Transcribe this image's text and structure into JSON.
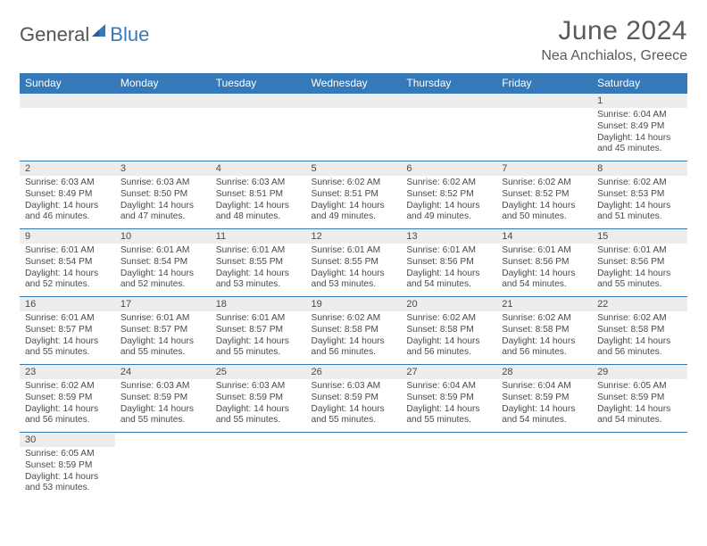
{
  "logo": {
    "text1": "General",
    "text2": "Blue",
    "sail_color": "#3579b8"
  },
  "header": {
    "title": "June 2024",
    "subtitle": "Nea Anchialos, Greece"
  },
  "colors": {
    "header_bg": "#3579b8",
    "header_fg": "#ffffff",
    "daynum_bg": "#ededed",
    "text": "#4a4a4a",
    "rule": "#3579b8"
  },
  "weekdays": [
    "Sunday",
    "Monday",
    "Tuesday",
    "Wednesday",
    "Thursday",
    "Friday",
    "Saturday"
  ],
  "weeks": [
    [
      null,
      null,
      null,
      null,
      null,
      null,
      {
        "n": "1",
        "sunrise": "Sunrise: 6:04 AM",
        "sunset": "Sunset: 8:49 PM",
        "day1": "Daylight: 14 hours",
        "day2": "and 45 minutes."
      }
    ],
    [
      {
        "n": "2",
        "sunrise": "Sunrise: 6:03 AM",
        "sunset": "Sunset: 8:49 PM",
        "day1": "Daylight: 14 hours",
        "day2": "and 46 minutes."
      },
      {
        "n": "3",
        "sunrise": "Sunrise: 6:03 AM",
        "sunset": "Sunset: 8:50 PM",
        "day1": "Daylight: 14 hours",
        "day2": "and 47 minutes."
      },
      {
        "n": "4",
        "sunrise": "Sunrise: 6:03 AM",
        "sunset": "Sunset: 8:51 PM",
        "day1": "Daylight: 14 hours",
        "day2": "and 48 minutes."
      },
      {
        "n": "5",
        "sunrise": "Sunrise: 6:02 AM",
        "sunset": "Sunset: 8:51 PM",
        "day1": "Daylight: 14 hours",
        "day2": "and 49 minutes."
      },
      {
        "n": "6",
        "sunrise": "Sunrise: 6:02 AM",
        "sunset": "Sunset: 8:52 PM",
        "day1": "Daylight: 14 hours",
        "day2": "and 49 minutes."
      },
      {
        "n": "7",
        "sunrise": "Sunrise: 6:02 AM",
        "sunset": "Sunset: 8:52 PM",
        "day1": "Daylight: 14 hours",
        "day2": "and 50 minutes."
      },
      {
        "n": "8",
        "sunrise": "Sunrise: 6:02 AM",
        "sunset": "Sunset: 8:53 PM",
        "day1": "Daylight: 14 hours",
        "day2": "and 51 minutes."
      }
    ],
    [
      {
        "n": "9",
        "sunrise": "Sunrise: 6:01 AM",
        "sunset": "Sunset: 8:54 PM",
        "day1": "Daylight: 14 hours",
        "day2": "and 52 minutes."
      },
      {
        "n": "10",
        "sunrise": "Sunrise: 6:01 AM",
        "sunset": "Sunset: 8:54 PM",
        "day1": "Daylight: 14 hours",
        "day2": "and 52 minutes."
      },
      {
        "n": "11",
        "sunrise": "Sunrise: 6:01 AM",
        "sunset": "Sunset: 8:55 PM",
        "day1": "Daylight: 14 hours",
        "day2": "and 53 minutes."
      },
      {
        "n": "12",
        "sunrise": "Sunrise: 6:01 AM",
        "sunset": "Sunset: 8:55 PM",
        "day1": "Daylight: 14 hours",
        "day2": "and 53 minutes."
      },
      {
        "n": "13",
        "sunrise": "Sunrise: 6:01 AM",
        "sunset": "Sunset: 8:56 PM",
        "day1": "Daylight: 14 hours",
        "day2": "and 54 minutes."
      },
      {
        "n": "14",
        "sunrise": "Sunrise: 6:01 AM",
        "sunset": "Sunset: 8:56 PM",
        "day1": "Daylight: 14 hours",
        "day2": "and 54 minutes."
      },
      {
        "n": "15",
        "sunrise": "Sunrise: 6:01 AM",
        "sunset": "Sunset: 8:56 PM",
        "day1": "Daylight: 14 hours",
        "day2": "and 55 minutes."
      }
    ],
    [
      {
        "n": "16",
        "sunrise": "Sunrise: 6:01 AM",
        "sunset": "Sunset: 8:57 PM",
        "day1": "Daylight: 14 hours",
        "day2": "and 55 minutes."
      },
      {
        "n": "17",
        "sunrise": "Sunrise: 6:01 AM",
        "sunset": "Sunset: 8:57 PM",
        "day1": "Daylight: 14 hours",
        "day2": "and 55 minutes."
      },
      {
        "n": "18",
        "sunrise": "Sunrise: 6:01 AM",
        "sunset": "Sunset: 8:57 PM",
        "day1": "Daylight: 14 hours",
        "day2": "and 55 minutes."
      },
      {
        "n": "19",
        "sunrise": "Sunrise: 6:02 AM",
        "sunset": "Sunset: 8:58 PM",
        "day1": "Daylight: 14 hours",
        "day2": "and 56 minutes."
      },
      {
        "n": "20",
        "sunrise": "Sunrise: 6:02 AM",
        "sunset": "Sunset: 8:58 PM",
        "day1": "Daylight: 14 hours",
        "day2": "and 56 minutes."
      },
      {
        "n": "21",
        "sunrise": "Sunrise: 6:02 AM",
        "sunset": "Sunset: 8:58 PM",
        "day1": "Daylight: 14 hours",
        "day2": "and 56 minutes."
      },
      {
        "n": "22",
        "sunrise": "Sunrise: 6:02 AM",
        "sunset": "Sunset: 8:58 PM",
        "day1": "Daylight: 14 hours",
        "day2": "and 56 minutes."
      }
    ],
    [
      {
        "n": "23",
        "sunrise": "Sunrise: 6:02 AM",
        "sunset": "Sunset: 8:59 PM",
        "day1": "Daylight: 14 hours",
        "day2": "and 56 minutes."
      },
      {
        "n": "24",
        "sunrise": "Sunrise: 6:03 AM",
        "sunset": "Sunset: 8:59 PM",
        "day1": "Daylight: 14 hours",
        "day2": "and 55 minutes."
      },
      {
        "n": "25",
        "sunrise": "Sunrise: 6:03 AM",
        "sunset": "Sunset: 8:59 PM",
        "day1": "Daylight: 14 hours",
        "day2": "and 55 minutes."
      },
      {
        "n": "26",
        "sunrise": "Sunrise: 6:03 AM",
        "sunset": "Sunset: 8:59 PM",
        "day1": "Daylight: 14 hours",
        "day2": "and 55 minutes."
      },
      {
        "n": "27",
        "sunrise": "Sunrise: 6:04 AM",
        "sunset": "Sunset: 8:59 PM",
        "day1": "Daylight: 14 hours",
        "day2": "and 55 minutes."
      },
      {
        "n": "28",
        "sunrise": "Sunrise: 6:04 AM",
        "sunset": "Sunset: 8:59 PM",
        "day1": "Daylight: 14 hours",
        "day2": "and 54 minutes."
      },
      {
        "n": "29",
        "sunrise": "Sunrise: 6:05 AM",
        "sunset": "Sunset: 8:59 PM",
        "day1": "Daylight: 14 hours",
        "day2": "and 54 minutes."
      }
    ],
    [
      {
        "n": "30",
        "sunrise": "Sunrise: 6:05 AM",
        "sunset": "Sunset: 8:59 PM",
        "day1": "Daylight: 14 hours",
        "day2": "and 53 minutes."
      },
      null,
      null,
      null,
      null,
      null,
      null
    ]
  ]
}
